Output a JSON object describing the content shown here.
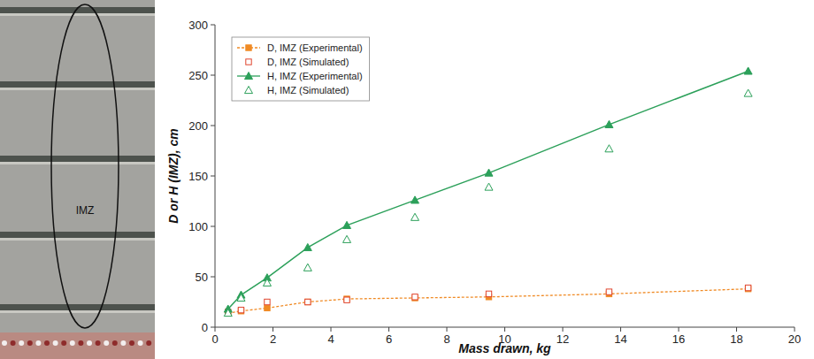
{
  "image": {
    "label": "IMZ"
  },
  "chart_data": {
    "type": "line",
    "x_label": "Mass drawn, kg",
    "y_label": "D or H (IMZ), cm",
    "x": [
      0.45,
      0.9,
      1.8,
      3.2,
      4.55,
      6.9,
      9.45,
      13.6,
      18.4
    ],
    "series": [
      {
        "name": "D, IMZ (Experimental)",
        "color": "#f08a24",
        "type": "line",
        "marker": "square",
        "line_style": "dashed",
        "values": [
          14,
          16,
          19,
          25,
          28,
          29,
          30,
          33,
          38
        ]
      },
      {
        "name": "D, IMZ (Simulated)",
        "color": "#e0452e",
        "type": "scatter",
        "marker": "open-square",
        "values": [
          15,
          17,
          25,
          25,
          27,
          30,
          33,
          35,
          39
        ]
      },
      {
        "name": "H, IMZ (Experimental)",
        "color": "#2ca05a",
        "type": "line",
        "marker": "triangle",
        "line_style": "solid",
        "values": [
          18,
          32,
          49,
          79,
          101,
          126,
          153,
          201,
          254
        ]
      },
      {
        "name": "H, IMZ (Simulated)",
        "color": "#2ca05a",
        "type": "scatter",
        "marker": "open-triangle",
        "values": [
          14,
          29,
          44,
          59,
          87,
          109,
          139,
          177,
          232
        ]
      }
    ],
    "xlim": [
      0,
      20
    ],
    "xticks": [
      0,
      2,
      4,
      6,
      8,
      10,
      12,
      14,
      16,
      18,
      20
    ],
    "ylim": [
      0,
      300
    ],
    "yticks": [
      0,
      50,
      100,
      150,
      200,
      250,
      300
    ],
    "grid": false,
    "legend": "upper-left"
  }
}
